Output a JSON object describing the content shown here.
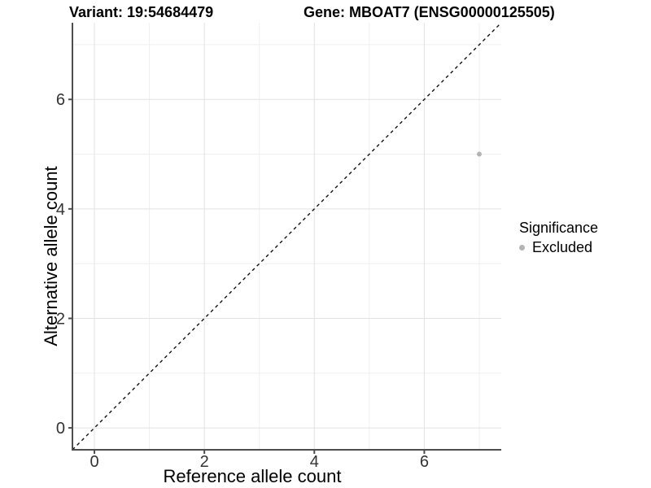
{
  "chart_data": {
    "type": "scatter",
    "variant_title": "Variant: 19:54684479",
    "gene_title": "Gene: MBOAT7 (ENSG00000125505)",
    "xlabel": "Reference allele count",
    "ylabel": "Alternative allele count",
    "xlim": [
      -0.4,
      7.4
    ],
    "ylim": [
      -0.4,
      7.4
    ],
    "x_major_ticks": [
      0,
      2,
      4,
      6
    ],
    "y_major_ticks": [
      0,
      2,
      4,
      6
    ],
    "x_minor_gridlines": [
      1,
      3,
      5,
      7
    ],
    "y_minor_gridlines": [
      1,
      3,
      5,
      7
    ],
    "grid": "on",
    "legend_position": "right",
    "series": [
      {
        "name": "Excluded",
        "marker": "circle",
        "color": "#b4b4b4",
        "point_radius": 3,
        "points": [
          {
            "x": 7,
            "y": 5
          }
        ]
      }
    ],
    "identity_line": {
      "style": "dashed",
      "color": "#111111",
      "x1": -0.4,
      "y1": -0.4,
      "x2": 7.4,
      "y2": 7.4
    },
    "legend": {
      "title": "Significance",
      "entries": [
        {
          "label": "Excluded",
          "color": "#b4b4b4",
          "marker": "circle"
        }
      ]
    }
  },
  "colors": {
    "background": "#ffffff",
    "axis_line": "#4d4d4d",
    "tick_mark": "#4d4d4d",
    "tick_label": "#333333",
    "grid_major": "#e2e2e2",
    "grid_minor": "#efefef",
    "title_text": "#000000"
  }
}
